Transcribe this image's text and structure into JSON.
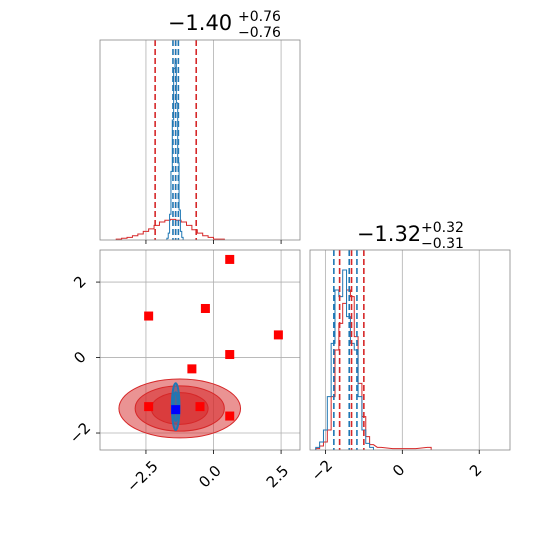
{
  "chart_data": {
    "type": "corner",
    "colors": {
      "primary": "#d62728",
      "secondary": "#1f77b4",
      "marker": "#ff0000",
      "truth": "#0000ff",
      "grid": "#b0b0b0"
    },
    "panels": [
      {
        "id": "p0",
        "type": "histogram",
        "title": {
          "main": "−1.40",
          "sup": "+0.76",
          "sub": "−0.76"
        },
        "xlim": [
          -4.2,
          3.2
        ],
        "xgrid": [
          -2.5,
          0.0,
          2.5
        ],
        "quantiles_red": [
          -2.16,
          -1.4,
          -0.64
        ],
        "quantiles_blue": [
          -1.5,
          -1.4,
          -1.3
        ],
        "red_hist": {
          "x": [
            -3.5,
            -3.3,
            -3.1,
            -2.9,
            -2.7,
            -2.5,
            -2.3,
            -2.1,
            -1.9,
            -1.7,
            -1.5,
            -1.3,
            -1.1,
            -0.9,
            -0.7,
            -0.5,
            -0.3,
            -0.1,
            0.1,
            0.3
          ],
          "y": [
            1,
            2,
            3,
            5,
            7,
            10,
            13,
            17,
            21,
            23,
            24,
            23,
            21,
            17,
            12,
            8,
            5,
            3,
            1,
            1
          ]
        },
        "blue_hist": {
          "x": [
            -1.7,
            -1.65,
            -1.6,
            -1.55,
            -1.5,
            -1.45,
            -1.4,
            -1.35,
            -1.3,
            -1.25,
            -1.2,
            -1.15
          ],
          "y": [
            2,
            8,
            30,
            80,
            140,
            200,
            210,
            160,
            90,
            35,
            10,
            3
          ]
        }
      },
      {
        "id": "p1",
        "type": "2d",
        "xlim": [
          -4.2,
          3.2
        ],
        "ylim": [
          -2.45,
          2.85
        ],
        "xticks": [
          "−2.5",
          "0.0",
          "2.5"
        ],
        "xtick_values": [
          -2.5,
          0.0,
          2.5
        ],
        "yticks": [
          "−2",
          "0",
          "2"
        ],
        "ytick_values": [
          -2,
          0,
          2
        ],
        "red_contours": [
          {
            "cx": -1.25,
            "cy": -1.35,
            "rx": 2.25,
            "ry": 0.78,
            "opacity": 0.55
          },
          {
            "cx": -1.25,
            "cy": -1.35,
            "rx": 1.65,
            "ry": 0.6,
            "opacity": 0.75
          },
          {
            "cx": -1.25,
            "cy": -1.35,
            "rx": 1.05,
            "ry": 0.42,
            "opacity": 0.85
          }
        ],
        "blue_contours": [
          {
            "cx": -1.4,
            "cy": -1.3,
            "rx": 0.14,
            "ry": 0.62
          },
          {
            "cx": -1.4,
            "cy": -1.3,
            "rx": 0.08,
            "ry": 0.38
          }
        ],
        "squares": [
          {
            "x": 0.6,
            "y": 2.6
          },
          {
            "x": -2.4,
            "y": 1.1
          },
          {
            "x": -0.3,
            "y": 1.3
          },
          {
            "x": 2.4,
            "y": 0.6
          },
          {
            "x": 0.6,
            "y": 0.08
          },
          {
            "x": -0.8,
            "y": -0.3
          },
          {
            "x": 0.6,
            "y": -1.55
          },
          {
            "x": -2.4,
            "y": -1.3
          },
          {
            "x": -0.5,
            "y": -1.3
          }
        ],
        "truth": {
          "x": -1.4,
          "y": -1.38
        }
      },
      {
        "id": "p2",
        "type": "histogram",
        "title": {
          "main": "−1.32",
          "sup": "+0.32",
          "sub": "−0.31"
        },
        "xlim": [
          -2.4,
          2.8
        ],
        "xticks": [
          "−2",
          "0",
          "2"
        ],
        "xtick_values": [
          -2,
          0,
          2
        ],
        "quantiles_red": [
          -1.63,
          -1.32,
          -1.0
        ],
        "quantiles_blue": [
          -1.78,
          -1.38,
          -1.18
        ],
        "red_hist": {
          "x": [
            -2.2,
            -2.1,
            -2.0,
            -1.9,
            -1.8,
            -1.7,
            -1.6,
            -1.5,
            -1.4,
            -1.3,
            -1.2,
            -1.1,
            -1.0,
            -0.9,
            -0.8,
            -0.6,
            -0.2,
            0.3,
            0.7
          ],
          "y": [
            1,
            3,
            6,
            15,
            40,
            75,
            95,
            110,
            120,
            115,
            85,
            50,
            25,
            10,
            4,
            2,
            1,
            1,
            2
          ]
        },
        "blue_hist": {
          "x": [
            -2.2,
            -2.1,
            -2.0,
            -1.9,
            -1.8,
            -1.7,
            -1.6,
            -1.5,
            -1.4,
            -1.3,
            -1.2,
            -1.1,
            -1.0,
            -0.9,
            -0.8
          ],
          "y": [
            2,
            6,
            15,
            40,
            80,
            120,
            115,
            135,
            100,
            80,
            75,
            40,
            15,
            5,
            2
          ]
        }
      }
    ]
  }
}
